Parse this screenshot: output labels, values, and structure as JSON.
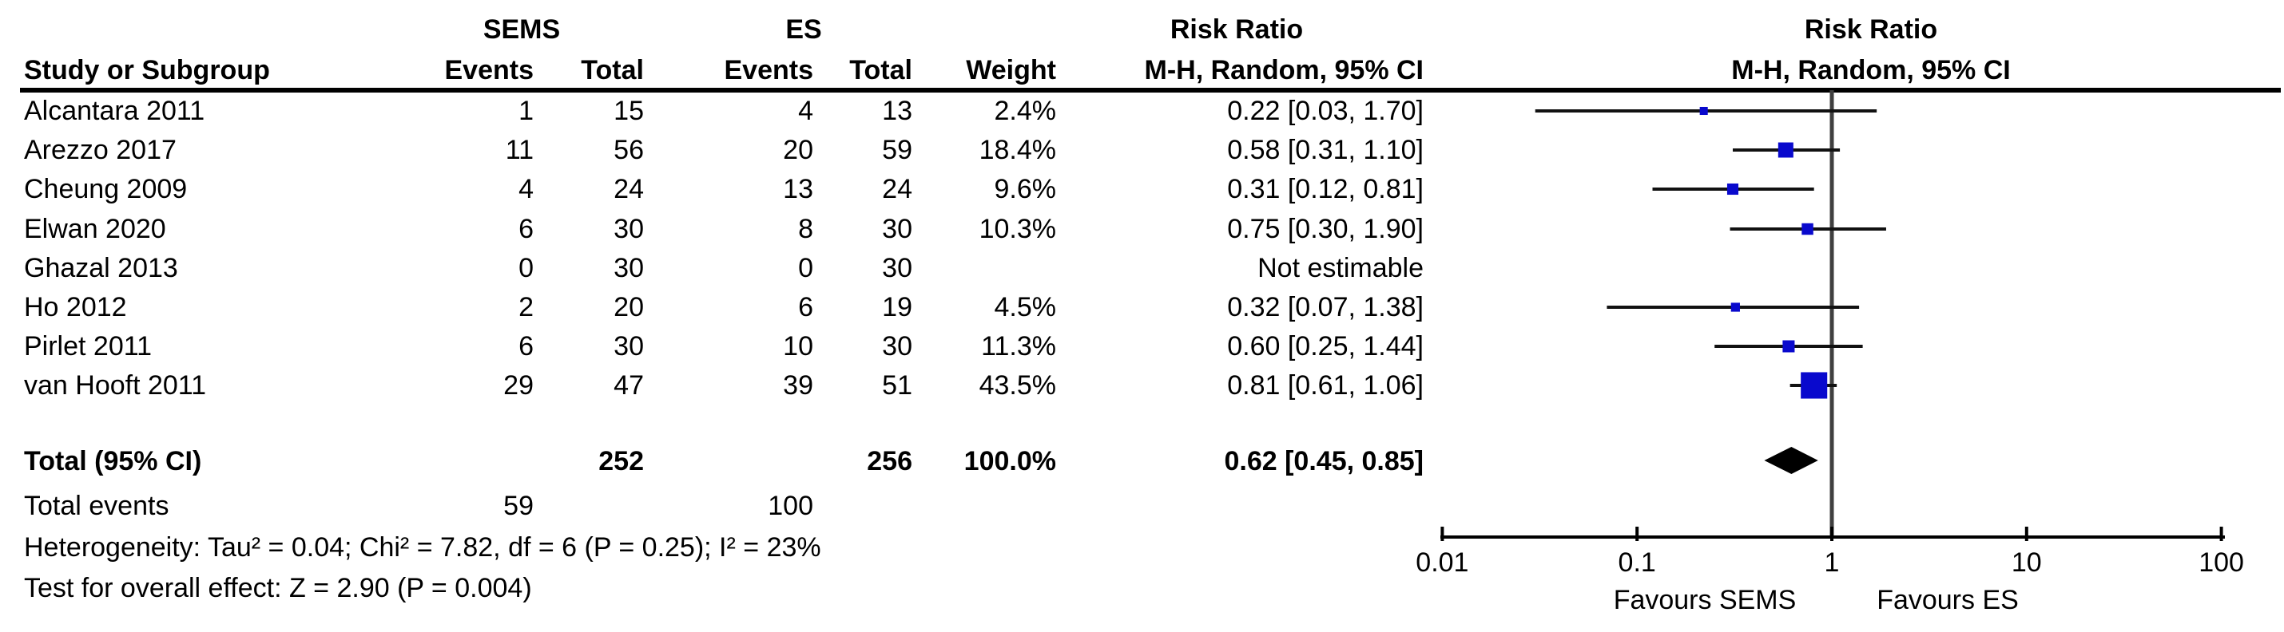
{
  "header": {
    "group_sems": "SEMS",
    "group_es": "ES",
    "risk_ratio_left": "Risk Ratio",
    "risk_ratio_right": "Risk Ratio",
    "col_study": "Study or Subgroup",
    "col_sems_events": "Events",
    "col_sems_total": "Total",
    "col_es_events": "Events",
    "col_es_total": "Total",
    "col_weight": "Weight",
    "col_ci_left": "M-H, Random, 95% CI",
    "col_ci_right": "M-H, Random, 95% CI"
  },
  "colors": {
    "marker_blue": "#0909CD",
    "ci_line": "#111111",
    "null_line": "#3f3f3f",
    "diamond": "#000000",
    "axis": "#000000",
    "text": "#000000"
  },
  "chart_data": {
    "type": "forest",
    "effect_measure": "Risk Ratio",
    "method": "M-H, Random, 95% CI",
    "x_scale": "log10",
    "x_ticks": [
      0.01,
      0.1,
      1,
      10,
      100
    ],
    "x_tick_labels": [
      "0.01",
      "0.1",
      "1",
      "10",
      "100"
    ],
    "null_line_value": 1,
    "favours_left": "Favours SEMS",
    "favours_right": "Favours ES",
    "studies": [
      {
        "name": "Alcantara 2011",
        "sems_events": "1",
        "sems_total": "15",
        "es_events": "4",
        "es_total": "13",
        "weight": "2.4%",
        "weight_val": 2.4,
        "rr": 0.22,
        "ci_low": 0.03,
        "ci_high": 1.7,
        "ci_text": "0.22 [0.03, 1.70]",
        "estimable": true
      },
      {
        "name": "Arezzo 2017",
        "sems_events": "11",
        "sems_total": "56",
        "es_events": "20",
        "es_total": "59",
        "weight": "18.4%",
        "weight_val": 18.4,
        "rr": 0.58,
        "ci_low": 0.31,
        "ci_high": 1.1,
        "ci_text": "0.58 [0.31, 1.10]",
        "estimable": true
      },
      {
        "name": "Cheung 2009",
        "sems_events": "4",
        "sems_total": "24",
        "es_events": "13",
        "es_total": "24",
        "weight": "9.6%",
        "weight_val": 9.6,
        "rr": 0.31,
        "ci_low": 0.12,
        "ci_high": 0.81,
        "ci_text": "0.31 [0.12, 0.81]",
        "estimable": true
      },
      {
        "name": "Elwan 2020",
        "sems_events": "6",
        "sems_total": "30",
        "es_events": "8",
        "es_total": "30",
        "weight": "10.3%",
        "weight_val": 10.3,
        "rr": 0.75,
        "ci_low": 0.3,
        "ci_high": 1.9,
        "ci_text": "0.75 [0.30, 1.90]",
        "estimable": true
      },
      {
        "name": "Ghazal 2013",
        "sems_events": "0",
        "sems_total": "30",
        "es_events": "0",
        "es_total": "30",
        "weight": "",
        "weight_val": 0,
        "rr": null,
        "ci_low": null,
        "ci_high": null,
        "ci_text": "Not estimable",
        "estimable": false
      },
      {
        "name": "Ho 2012",
        "sems_events": "2",
        "sems_total": "20",
        "es_events": "6",
        "es_total": "19",
        "weight": "4.5%",
        "weight_val": 4.5,
        "rr": 0.32,
        "ci_low": 0.07,
        "ci_high": 1.38,
        "ci_text": "0.32 [0.07, 1.38]",
        "estimable": true
      },
      {
        "name": "Pirlet 2011",
        "sems_events": "6",
        "sems_total": "30",
        "es_events": "10",
        "es_total": "30",
        "weight": "11.3%",
        "weight_val": 11.3,
        "rr": 0.6,
        "ci_low": 0.25,
        "ci_high": 1.44,
        "ci_text": "0.60 [0.25, 1.44]",
        "estimable": true
      },
      {
        "name": "van Hooft 2011",
        "sems_events": "29",
        "sems_total": "47",
        "es_events": "39",
        "es_total": "51",
        "weight": "43.5%",
        "weight_val": 43.5,
        "rr": 0.81,
        "ci_low": 0.61,
        "ci_high": 1.06,
        "ci_text": "0.81 [0.61, 1.06]",
        "estimable": true
      }
    ],
    "total": {
      "label": "Total (95% CI)",
      "sems_total": "252",
      "es_total": "256",
      "weight": "100.0%",
      "rr": 0.62,
      "ci_low": 0.45,
      "ci_high": 0.85,
      "ci_text": "0.62 [0.45, 0.85]"
    },
    "total_events": {
      "label": "Total events",
      "sems": "59",
      "es": "100"
    },
    "heterogeneity": "Heterogeneity: Tau² = 0.04; Chi² = 7.82, df = 6 (P = 0.25); I² = 23%",
    "overall_effect": "Test for overall effect: Z = 2.90 (P = 0.004)"
  }
}
